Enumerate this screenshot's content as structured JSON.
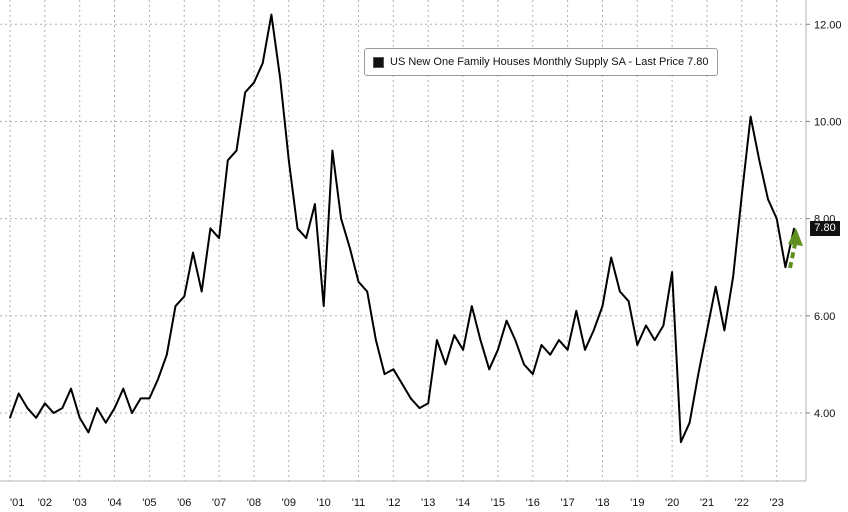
{
  "chart_data": {
    "type": "line",
    "title": "",
    "xlabel": "",
    "ylabel": "",
    "x_tick_labels": [
      "'01",
      "'02",
      "'03",
      "'04",
      "'05",
      "'06",
      "'07",
      "'08",
      "'09",
      "'10",
      "'11",
      "'12",
      "'13",
      "'14",
      "'15",
      "'16",
      "'17",
      "'18",
      "'19",
      "'20",
      "'21",
      "'22",
      "'23"
    ],
    "y_tick_labels": [
      "4.00",
      "6.00",
      "8.00",
      "10.00",
      "12.00"
    ],
    "ylim": [
      2.6,
      12.5
    ],
    "xlim": [
      2001.0,
      2024.0
    ],
    "grid": true,
    "series": [
      {
        "name": "US New One Family Houses Monthly Supply SA - Last Price 7.80",
        "color": "#000000",
        "x": [
          2001.0,
          2001.25,
          2001.5,
          2001.75,
          2002.0,
          2002.25,
          2002.5,
          2002.75,
          2003.0,
          2003.25,
          2003.5,
          2003.75,
          2004.0,
          2004.25,
          2004.5,
          2004.75,
          2005.0,
          2005.25,
          2005.5,
          2005.75,
          2006.0,
          2006.25,
          2006.5,
          2006.75,
          2007.0,
          2007.25,
          2007.5,
          2007.75,
          2008.0,
          2008.25,
          2008.5,
          2008.75,
          2009.0,
          2009.25,
          2009.5,
          2009.75,
          2010.0,
          2010.25,
          2010.5,
          2010.75,
          2011.0,
          2011.25,
          2011.5,
          2011.75,
          2012.0,
          2012.25,
          2012.5,
          2012.75,
          2013.0,
          2013.25,
          2013.5,
          2013.75,
          2014.0,
          2014.25,
          2014.5,
          2014.75,
          2015.0,
          2015.25,
          2015.5,
          2015.75,
          2016.0,
          2016.25,
          2016.5,
          2016.75,
          2017.0,
          2017.25,
          2017.5,
          2017.75,
          2018.0,
          2018.25,
          2018.5,
          2018.75,
          2019.0,
          2019.25,
          2019.5,
          2019.75,
          2020.0,
          2020.25,
          2020.5,
          2020.75,
          2021.0,
          2021.25,
          2021.5,
          2021.75,
          2022.0,
          2022.25,
          2022.5,
          2022.75,
          2023.0,
          2023.25,
          2023.5
        ],
        "values": [
          3.9,
          4.4,
          4.1,
          3.9,
          4.2,
          4.0,
          4.1,
          4.5,
          3.9,
          3.6,
          4.1,
          3.8,
          4.1,
          4.5,
          4.0,
          4.3,
          4.3,
          4.7,
          5.2,
          6.2,
          6.4,
          7.3,
          6.5,
          7.8,
          7.6,
          9.2,
          9.4,
          10.6,
          10.8,
          11.2,
          12.2,
          10.9,
          9.2,
          7.8,
          7.6,
          8.3,
          6.2,
          9.4,
          8.0,
          7.4,
          6.7,
          6.5,
          5.5,
          4.8,
          4.9,
          4.6,
          4.3,
          4.1,
          4.2,
          5.5,
          5.0,
          5.6,
          5.3,
          6.2,
          5.5,
          4.9,
          5.3,
          5.9,
          5.5,
          5.0,
          4.8,
          5.4,
          5.2,
          5.5,
          5.3,
          6.1,
          5.3,
          5.7,
          6.2,
          7.2,
          6.5,
          6.3,
          5.4,
          5.8,
          5.5,
          5.8,
          6.9,
          3.4,
          3.8,
          4.8,
          5.7,
          6.6,
          5.7,
          6.8,
          8.5,
          10.1,
          9.2,
          8.4,
          8.0,
          7.0,
          7.8
        ]
      }
    ],
    "last_value_label": "7.80",
    "annotation": "green dashed up arrow",
    "colors": {
      "line": "#000000",
      "grid": "#b0b0b0",
      "arrow": "#5e8f1f",
      "tag_bg": "#111111"
    }
  }
}
